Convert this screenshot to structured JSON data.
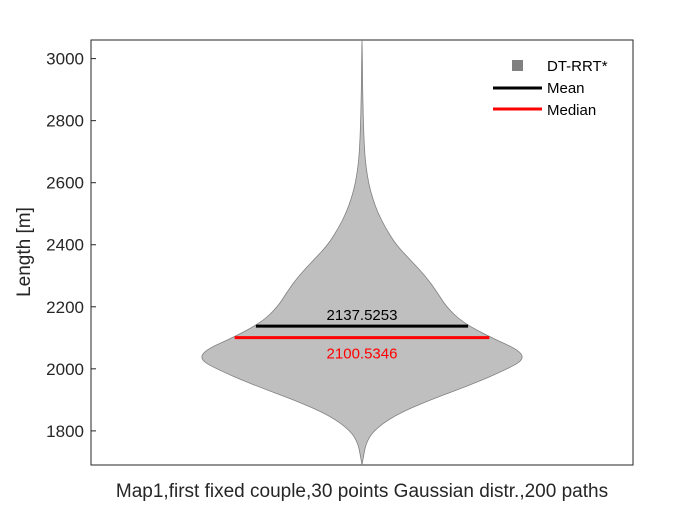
{
  "chart_data": {
    "type": "violin",
    "xlabel": "Map1,first fixed couple,30 points Gaussian distr.,200 paths",
    "ylabel": "Length [m]",
    "ylim": [
      1690,
      3060
    ],
    "yticks": [
      1800,
      2000,
      2200,
      2400,
      2600,
      2800,
      3000
    ],
    "grid": false,
    "legend_position": "top-right",
    "series": [
      {
        "name": "DT-RRT*",
        "color": "#bfbfbf",
        "edge_color": "#808080",
        "marker_color": "#808080",
        "y_min": 1690,
        "y_max": 3060,
        "density_profile": [
          [
            1690,
            0.0
          ],
          [
            1720,
            0.01
          ],
          [
            1760,
            0.025
          ],
          [
            1800,
            0.07
          ],
          [
            1850,
            0.2
          ],
          [
            1900,
            0.42
          ],
          [
            1950,
            0.68
          ],
          [
            2000,
            0.9
          ],
          [
            2030,
            1.0
          ],
          [
            2060,
            0.97
          ],
          [
            2100,
            0.8
          ],
          [
            2150,
            0.62
          ],
          [
            2200,
            0.52
          ],
          [
            2250,
            0.46
          ],
          [
            2300,
            0.39
          ],
          [
            2350,
            0.3
          ],
          [
            2400,
            0.21
          ],
          [
            2450,
            0.15
          ],
          [
            2500,
            0.1
          ],
          [
            2550,
            0.065
          ],
          [
            2600,
            0.04
          ],
          [
            2650,
            0.025
          ],
          [
            2700,
            0.016
          ],
          [
            2800,
            0.008
          ],
          [
            2900,
            0.004
          ],
          [
            3000,
            0.002
          ],
          [
            3060,
            0.0
          ]
        ]
      }
    ],
    "stats": {
      "mean": {
        "label": "Mean",
        "value": 2137.5253,
        "value_text": "2137.5253",
        "color": "#000000"
      },
      "median": {
        "label": "Median",
        "value": 2100.5346,
        "value_text": "2100.5346",
        "color": "#ff0000"
      }
    }
  }
}
